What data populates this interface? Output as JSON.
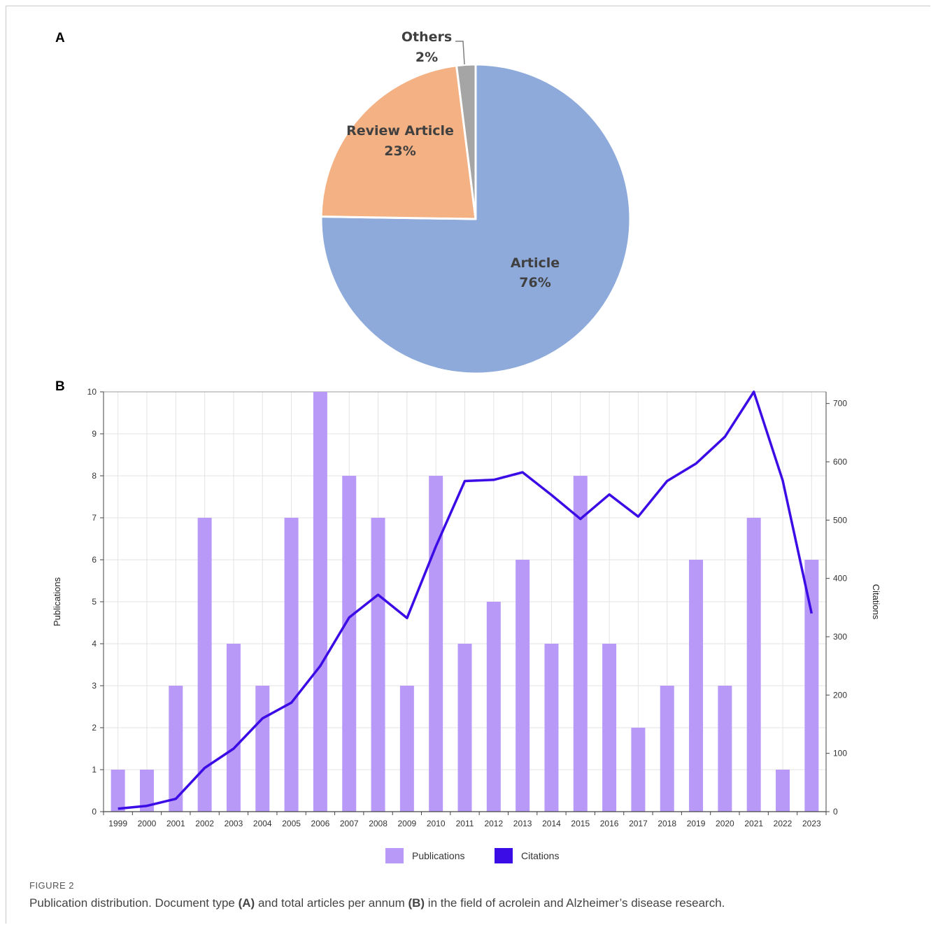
{
  "figure": {
    "label": "FIGURE 2",
    "caption_parts": [
      {
        "text": "Publication distribution. Document type ",
        "bold": false
      },
      {
        "text": "(A)",
        "bold": true
      },
      {
        "text": " and total articles per annum ",
        "bold": false
      },
      {
        "text": "(B)",
        "bold": true
      },
      {
        "text": " in the field of acrolein and Alzheimer’s disease research.",
        "bold": false
      }
    ]
  },
  "panels": {
    "a": "A",
    "b": "B"
  },
  "chart_data": [
    {
      "type": "pie",
      "panel": "A",
      "slices": [
        {
          "label": "Article",
          "value": 76,
          "display": "76%",
          "color": "#8eaadb"
        },
        {
          "label": "Review Article",
          "value": 23,
          "display": "23%",
          "color": "#f4b183"
        },
        {
          "label": "Others",
          "value": 2,
          "display": "2%",
          "color": "#a5a5a5"
        }
      ]
    },
    {
      "type": "bar",
      "panel": "B",
      "categories": [
        "1999",
        "2000",
        "2001",
        "2002",
        "2003",
        "2004",
        "2005",
        "2006",
        "2007",
        "2008",
        "2009",
        "2010",
        "2011",
        "2012",
        "2013",
        "2014",
        "2015",
        "2016",
        "2017",
        "2018",
        "2019",
        "2020",
        "2021",
        "2022",
        "2023"
      ],
      "series": [
        {
          "name": "Publications",
          "type": "bar",
          "axis": "left",
          "color": "#b899f7",
          "values": [
            1,
            1,
            3,
            7,
            4,
            3,
            7,
            10,
            8,
            7,
            3,
            8,
            4,
            5,
            6,
            4,
            8,
            4,
            2,
            3,
            6,
            3,
            7,
            1,
            6
          ]
        },
        {
          "name": "Citations",
          "type": "line",
          "axis": "right",
          "color": "#3c0ce6",
          "values": [
            5,
            10,
            22,
            75,
            108,
            160,
            187,
            250,
            333,
            372,
            332,
            455,
            567,
            569,
            582,
            543,
            502,
            544,
            506,
            567,
            597,
            643,
            720,
            568,
            340
          ]
        }
      ],
      "ylabel": "Publications",
      "y2label": "Citations",
      "ylim": [
        0,
        10
      ],
      "y2lim": [
        0,
        720
      ],
      "yticks": [
        0,
        1,
        2,
        3,
        4,
        5,
        6,
        7,
        8,
        9,
        10
      ],
      "y2ticks": [
        0,
        100,
        200,
        300,
        400,
        500,
        600,
        700
      ],
      "grid": true,
      "legend": "bottom"
    }
  ]
}
